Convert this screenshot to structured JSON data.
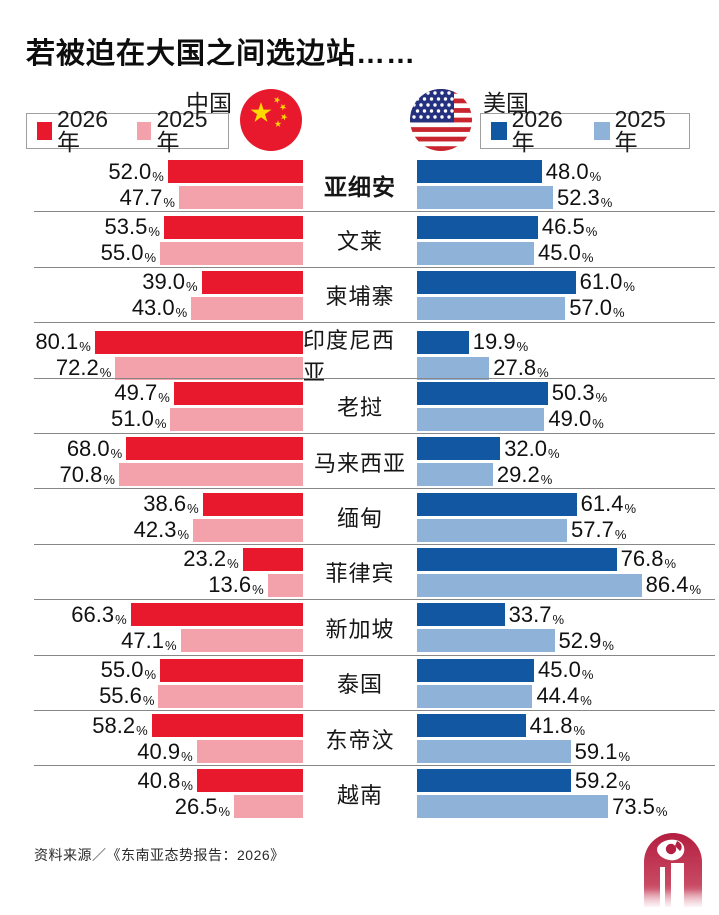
{
  "title": "若被迫在大国之间选边站……",
  "groups": {
    "china": {
      "label": "中国",
      "legend": [
        {
          "label": "2026年",
          "color": "#e8192d"
        },
        {
          "label": "2025年",
          "color": "#f3a2ab"
        }
      ]
    },
    "usa": {
      "label": "美国",
      "legend": [
        {
          "label": "2026年",
          "color": "#1257a2"
        },
        {
          "label": "2025年",
          "color": "#8fb2d9"
        }
      ]
    }
  },
  "source": "资料来源／《东南亚态势报告：2026》",
  "logo": "zaobao-logo",
  "chart_data": {
    "type": "bar",
    "unit": "%",
    "orientation": "horizontal-mirrored",
    "categories": [
      "亚细安",
      "文莱",
      "柬埔寨",
      "印度尼西亚",
      "老挝",
      "马来西亚",
      "缅甸",
      "菲律宾",
      "新加坡",
      "泰国",
      "东帝汶",
      "越南"
    ],
    "bold_category": "亚细安",
    "xlim": [
      0,
      100
    ],
    "series": [
      {
        "name": "中国 2026年",
        "key": "china_2026",
        "color": "#e8192d",
        "values": [
          52.0,
          53.5,
          39.0,
          80.1,
          49.7,
          68.0,
          38.6,
          23.2,
          66.3,
          55.0,
          58.2,
          40.8
        ]
      },
      {
        "name": "中国 2025年",
        "key": "china_2025",
        "color": "#f3a2ab",
        "values": [
          47.7,
          55.0,
          43.0,
          72.2,
          51.0,
          70.8,
          42.3,
          13.6,
          47.1,
          55.6,
          40.9,
          26.5
        ]
      },
      {
        "name": "美国 2026年",
        "key": "us_2026",
        "color": "#1257a2",
        "values": [
          48.0,
          46.5,
          61.0,
          19.9,
          50.3,
          32.0,
          61.4,
          76.8,
          33.7,
          45.0,
          41.8,
          59.2
        ]
      },
      {
        "name": "美国 2025年",
        "key": "us_2025",
        "color": "#8fb2d9",
        "values": [
          52.3,
          45.0,
          57.0,
          27.8,
          49.0,
          29.2,
          57.7,
          86.4,
          52.9,
          44.4,
          59.1,
          73.5
        ]
      }
    ]
  }
}
